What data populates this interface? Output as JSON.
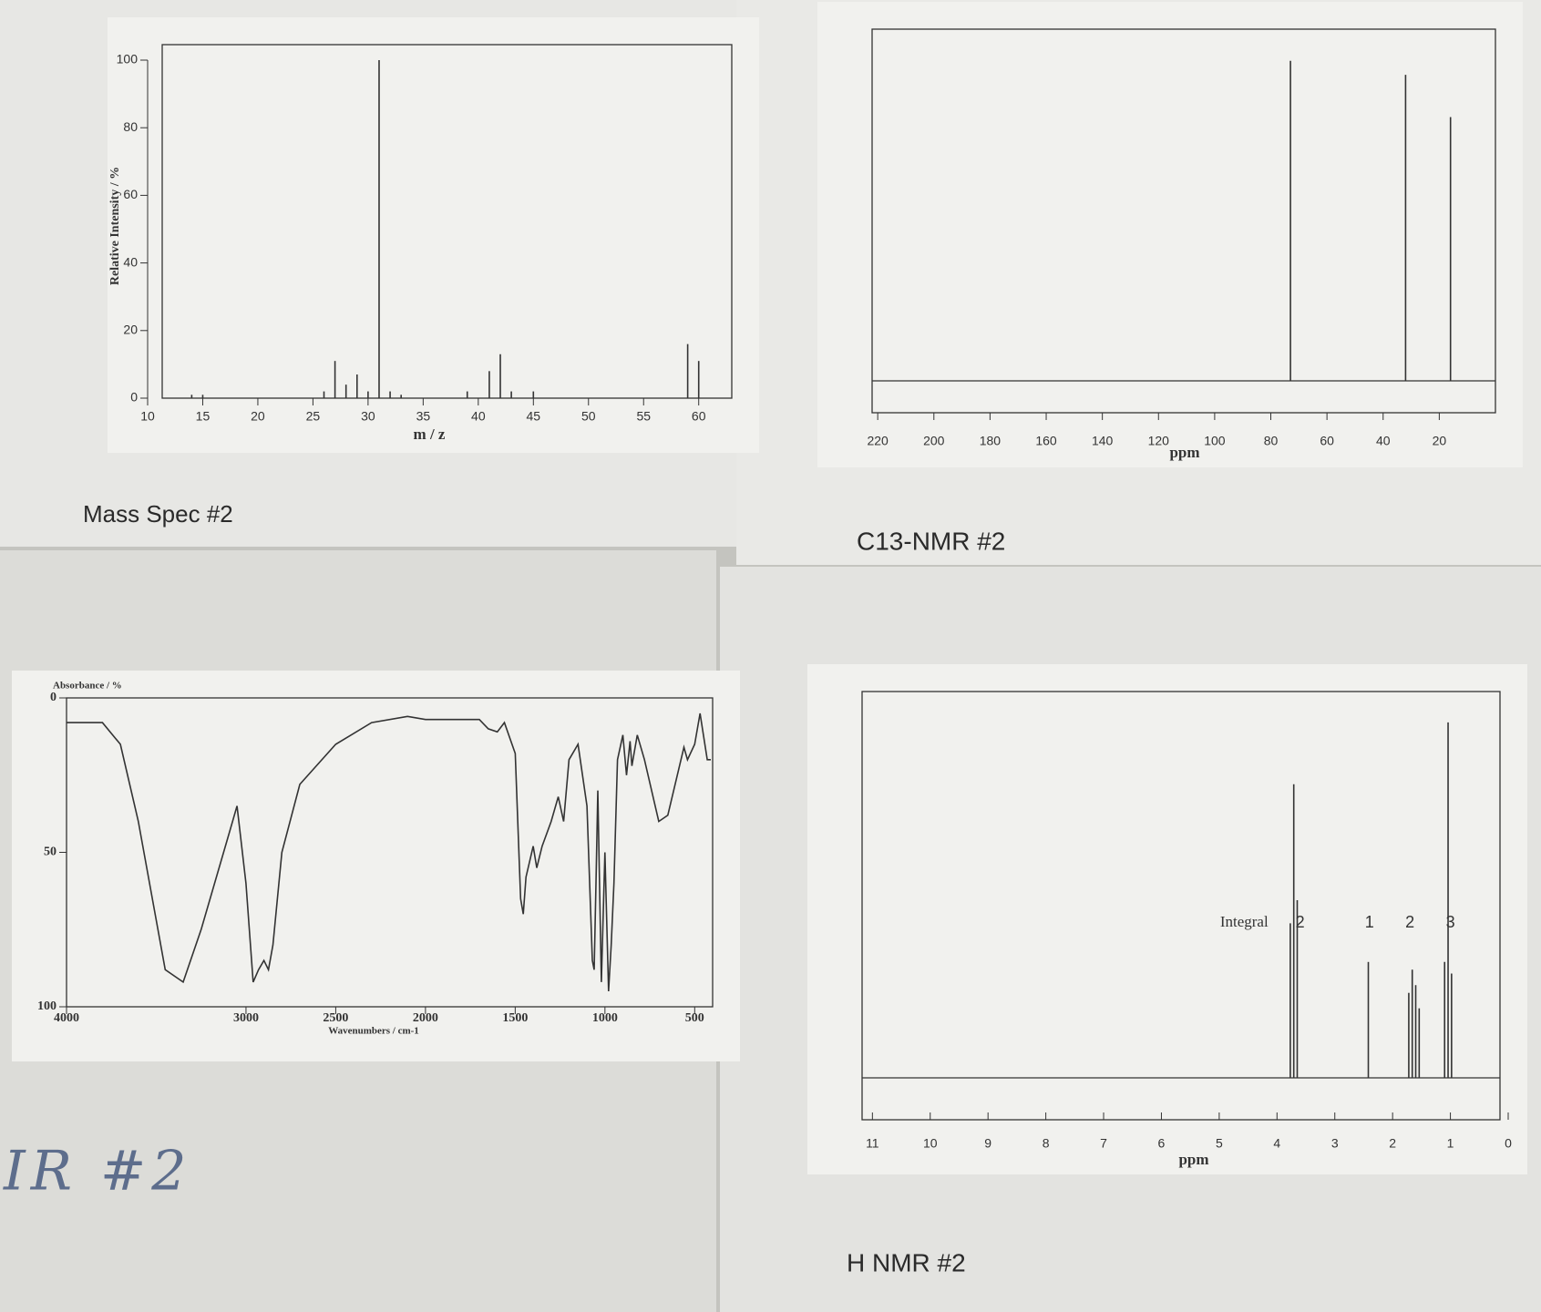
{
  "chart_data": [
    {
      "type": "bar",
      "title": "Mass Spec #2",
      "x_label": "m / z",
      "y_label": "Relative Intensity / %",
      "x": [
        14,
        15,
        26,
        27,
        28,
        29,
        30,
        31,
        32,
        33,
        39,
        41,
        42,
        43,
        45,
        59,
        60
      ],
      "values": [
        1,
        1,
        2,
        11,
        4,
        7,
        2,
        100,
        2,
        1,
        2,
        8,
        13,
        2,
        2,
        16,
        11
      ],
      "xlim": [
        10,
        63
      ],
      "ylim": [
        0,
        100
      ],
      "xticks": [
        10,
        15,
        20,
        25,
        30,
        35,
        40,
        45,
        50,
        55,
        60
      ],
      "yticks": [
        0,
        20,
        40,
        60,
        80,
        100
      ],
      "color": "#333333"
    },
    {
      "type": "stick",
      "title": "C13-NMR #2",
      "x_label": "ppm",
      "x": [
        73,
        32,
        16
      ],
      "values": [
        91,
        87,
        75
      ],
      "xlim": [
        222,
        0
      ],
      "xticks": [
        220,
        200,
        180,
        160,
        140,
        120,
        100,
        80,
        60,
        40,
        20
      ],
      "color": "#333333"
    },
    {
      "type": "line",
      "title": "IR #2",
      "x_label": "Wavenumbers / cm-1",
      "y_label": "Absorbance / %",
      "x": [
        4000,
        3800,
        3700,
        3600,
        3450,
        3350,
        3250,
        3100,
        3050,
        3000,
        2960,
        2930,
        2900,
        2875,
        2850,
        2800,
        2700,
        2500,
        2300,
        2100,
        2000,
        1800,
        1700,
        1650,
        1600,
        1560,
        1500,
        1470,
        1455,
        1440,
        1400,
        1380,
        1350,
        1300,
        1260,
        1230,
        1200,
        1150,
        1100,
        1070,
        1060,
        1050,
        1040,
        1020,
        1000,
        980,
        965,
        950,
        930,
        900,
        880,
        860,
        850,
        820,
        780,
        700,
        650,
        560,
        540,
        500,
        470,
        430,
        410
      ],
      "values": [
        8,
        8,
        15,
        40,
        88,
        92,
        75,
        45,
        35,
        60,
        92,
        88,
        85,
        88,
        80,
        50,
        28,
        15,
        8,
        6,
        7,
        7,
        7,
        10,
        11,
        8,
        18,
        65,
        70,
        58,
        48,
        55,
        48,
        40,
        32,
        40,
        20,
        15,
        35,
        85,
        88,
        60,
        30,
        92,
        50,
        95,
        80,
        60,
        20,
        12,
        25,
        14,
        22,
        12,
        20,
        40,
        38,
        16,
        20,
        15,
        5,
        20,
        20
      ],
      "xlim": [
        4000,
        400
      ],
      "ylim": [
        100,
        0
      ],
      "xticks": [
        4000,
        3000,
        2500,
        2000,
        1500,
        1000,
        500
      ],
      "yticks": [
        0,
        50,
        100
      ],
      "color": "#333333"
    },
    {
      "type": "stick",
      "title": "H NMR #2",
      "x_label": "ppm",
      "x": [
        3.77,
        3.71,
        3.65,
        2.42,
        1.72,
        1.66,
        1.6,
        1.54,
        1.1,
        1.04,
        0.98
      ],
      "values": [
        40,
        76,
        46,
        30,
        22,
        28,
        24,
        18,
        30,
        92,
        27
      ],
      "xlim": [
        11.1,
        0
      ],
      "xticks": [
        11,
        10,
        9,
        8,
        7,
        6,
        5,
        4,
        3,
        2,
        1,
        0
      ],
      "color": "#333333",
      "integral_label": "Integral",
      "integrals": [
        2,
        1,
        2,
        3
      ],
      "integral_x": [
        3.6,
        2.4,
        1.7,
        1.0
      ]
    }
  ]
}
